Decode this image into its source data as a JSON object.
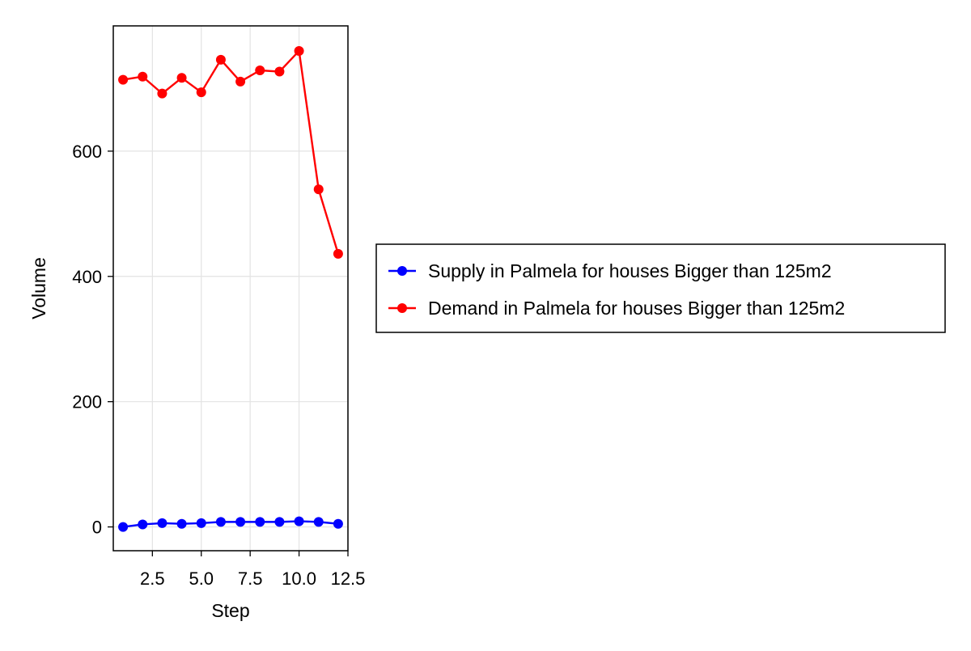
{
  "chart_data": {
    "type": "line",
    "xlabel": "Step",
    "ylabel": "Volume",
    "xlim": [
      0.5,
      12.5
    ],
    "ylim": [
      -38,
      800
    ],
    "x_ticks": [
      2.5,
      5.0,
      7.5,
      10.0,
      12.5
    ],
    "x_tick_labels": [
      "2.5",
      "5.0",
      "7.5",
      "10.0",
      "12.5"
    ],
    "y_ticks": [
      0,
      200,
      400,
      600
    ],
    "y_tick_labels": [
      "0",
      "200",
      "400",
      "600"
    ],
    "grid": true,
    "legend_position": "right",
    "x": [
      1,
      2,
      3,
      4,
      5,
      6,
      7,
      8,
      9,
      10,
      11,
      12
    ],
    "series": [
      {
        "name": "Supply in Palmela for houses Bigger than 125m2",
        "color": "#0000ff",
        "values": [
          0,
          4,
          6,
          5,
          6,
          8,
          8,
          8,
          8,
          9,
          8,
          5
        ]
      },
      {
        "name": "Demand in Palmela for houses Bigger than 125m2",
        "color": "#ff0000",
        "values": [
          714,
          719,
          692,
          717,
          694,
          746,
          711,
          729,
          727,
          760,
          539,
          436
        ]
      }
    ]
  }
}
